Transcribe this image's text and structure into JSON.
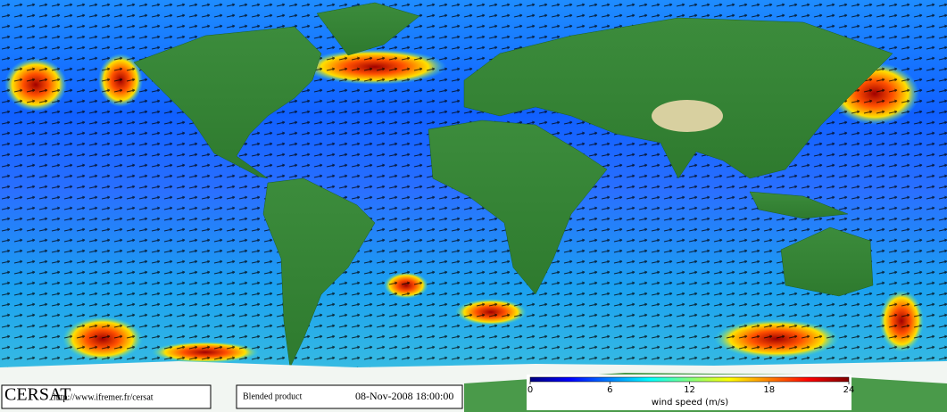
{
  "footer": {
    "logo": "CERSAT",
    "url": "http://www.ifremer.fr/cersat",
    "product": "Blended product",
    "timestamp": "08-Nov-2008 18:00:00"
  },
  "colorbar": {
    "label": "wind speed (m/s)",
    "lim": [
      0,
      24
    ],
    "ticks": [
      0,
      6,
      12,
      18,
      24
    ],
    "colors": [
      "#00007f",
      "#0000ff",
      "#0080ff",
      "#00ffff",
      "#80ff80",
      "#ffff00",
      "#ff8000",
      "#ff0000",
      "#7f0000"
    ]
  }
}
